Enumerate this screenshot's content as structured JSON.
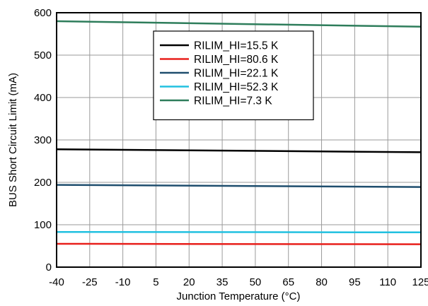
{
  "chart_data": {
    "type": "line",
    "xlabel": "Junction Temperature (°C)",
    "ylabel": "BUS Short Circuit Limit (mA)",
    "xlim": [
      -40,
      125
    ],
    "ylim": [
      0,
      600
    ],
    "xticks": [
      -40,
      -25,
      -10,
      5,
      20,
      35,
      50,
      65,
      80,
      95,
      110,
      125
    ],
    "yticks": [
      0,
      100,
      200,
      300,
      400,
      500,
      600
    ],
    "grid": true,
    "legend_position": "top-center",
    "series": [
      {
        "name": "RILIM_HI=15.5 K",
        "color": "#000000",
        "x": [
          -40,
          125
        ],
        "y": [
          278,
          271
        ]
      },
      {
        "name": "RILIM_HI=80.6 K",
        "color": "#e8201c",
        "x": [
          -40,
          125
        ],
        "y": [
          55,
          54
        ]
      },
      {
        "name": "RILIM_HI=22.1 K",
        "color": "#1f4e6e",
        "x": [
          -40,
          125
        ],
        "y": [
          194,
          189
        ]
      },
      {
        "name": "RILIM_HI=52.3 K",
        "color": "#22c1e0",
        "x": [
          -40,
          125
        ],
        "y": [
          83,
          82
        ]
      },
      {
        "name": "RILIM_HI=7.3 K",
        "color": "#2e7d5b",
        "x": [
          -40,
          125
        ],
        "y": [
          580,
          567
        ]
      }
    ]
  }
}
